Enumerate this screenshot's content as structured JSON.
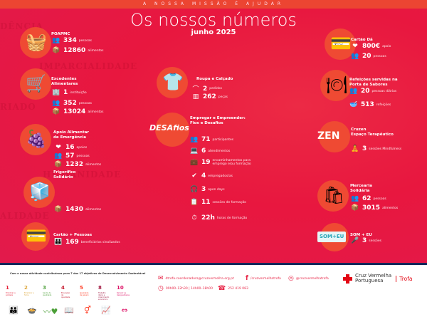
{
  "header": {
    "mission": "A NOSSA MISSÃO É AJUDAR",
    "title": "Os nossos números",
    "subtitle": "junho 2025"
  },
  "watermarks": [
    "IMPARCIALIDADE",
    "HUMANIDADE",
    "ALIDADE",
    "RIADO",
    "DÊNCIA"
  ],
  "accent": "#e8173f",
  "sections": [
    {
      "id": "poapmc",
      "title": "POAPMC",
      "icon": "picnic-basket-icon",
      "stats": [
        {
          "icon": "people-icon",
          "value": "334",
          "unit": "pessoas"
        },
        {
          "icon": "food-box-icon",
          "value": "12860",
          "unit": "alimentos"
        }
      ]
    },
    {
      "id": "excedentes",
      "title": "Excedentes\nAlimentares",
      "icon": "shopping-basket-icon",
      "stats": [
        {
          "icon": "building-icon",
          "value": "1",
          "unit": "instituição"
        },
        {
          "icon": "people-icon",
          "value": "352",
          "unit": "pessoas"
        },
        {
          "icon": "food-box-icon",
          "value": "13024",
          "unit": "alimentos"
        }
      ]
    },
    {
      "id": "apoio",
      "title": "Apoio Alimentar\nde Emergência",
      "icon": "fruit-basket-icon",
      "stats": [
        {
          "icon": "heart-hand-icon",
          "value": "16",
          "unit": "apoios"
        },
        {
          "icon": "people-icon",
          "value": "57",
          "unit": "pessoas"
        },
        {
          "icon": "food-box-icon",
          "value": "1232",
          "unit": "alimentos"
        }
      ]
    },
    {
      "id": "frigorifico",
      "title": "Frigorífico\nSolidário",
      "icon": "fridge-icon",
      "stats": [
        {
          "icon": "food-box-icon",
          "value": "1430",
          "unit": "alimentos"
        }
      ]
    },
    {
      "id": "cartao-pessoas",
      "title": "Cartão + Pessoas",
      "icon": "card-icon",
      "stats": [
        {
          "icon": "group-icon",
          "value": "169",
          "unit": "beneficiários sinalizados"
        }
      ]
    },
    {
      "id": "roupa",
      "title": "Roupa e Calçado",
      "icon": "clothes-icon",
      "stats": [
        {
          "icon": "hanger-icon",
          "value": "2",
          "unit": "pedidos"
        },
        {
          "icon": "clothes-rack-icon",
          "value": "262",
          "unit": "peças"
        }
      ]
    },
    {
      "id": "empregar",
      "title": "Empregar e Empreender:\nFios e Desafios",
      "logo": "DESAfios",
      "icon": "desafios-logo",
      "stats": [
        {
          "icon": "people-icon",
          "value": "71",
          "unit": "participantes"
        },
        {
          "icon": "desk-icon",
          "value": "6",
          "unit": "atendimentos"
        },
        {
          "icon": "briefcase-icon",
          "value": "19",
          "unit": "encaminhamentos para emprego e/ou formação"
        },
        {
          "icon": "check-icon",
          "value": "4",
          "unit": "empregados/as"
        },
        {
          "icon": "headset-icon",
          "value": "3",
          "unit": "open days"
        },
        {
          "icon": "training-icon",
          "value": "11",
          "unit": "sessões de formação"
        },
        {
          "icon": "clock-icon",
          "value": "22h",
          "unit": "horas de formação"
        }
      ]
    },
    {
      "id": "cartao-da",
      "title": "Cartão Dá",
      "icon": "card-hand-icon",
      "stats": [
        {
          "icon": "heart-hand-icon",
          "value": "800€",
          "unit": "apoio"
        },
        {
          "icon": "people-icon",
          "value": "20",
          "unit": "pessoas"
        }
      ]
    },
    {
      "id": "refeicoes",
      "title": "Refeições servidas na\nPorta de Sabores",
      "icon": "plate-icon",
      "stats": [
        {
          "icon": "people-icon",
          "value": "20",
          "unit": "pessoas diárias"
        },
        {
          "icon": "bowl-icon",
          "value": "513",
          "unit": "refeições"
        }
      ]
    },
    {
      "id": "cruzen",
      "title": "Cruzen\nEspaço Terapêutico",
      "logo": "ZEN",
      "icon": "cruzen-logo",
      "stats": [
        {
          "icon": "meditation-icon",
          "value": "3",
          "unit": "sessões Mindfulness"
        }
      ]
    },
    {
      "id": "mercearia",
      "title": "Mercearia\nSolidária",
      "icon": "grocery-bag-icon",
      "stats": [
        {
          "icon": "people-icon",
          "value": "62",
          "unit": "pessoas"
        },
        {
          "icon": "food-box-icon",
          "value": "3015",
          "unit": "alimentos"
        }
      ]
    },
    {
      "id": "som-eu",
      "title": "SOM + EU",
      "logo": "SOM+EU",
      "icon": "som-eu-logo",
      "stats": [
        {
          "icon": "microphone-icon",
          "value": "3",
          "unit": "sessões"
        }
      ]
    }
  ],
  "footer": {
    "ods_text": "Com a nossa atividade contribuímos para 7 dos 17 objetivos de Desenvolvimento Sustentável",
    "sdgs": [
      {
        "n": "1",
        "label": "Erradicar a pobreza",
        "color": "#e5243b"
      },
      {
        "n": "2",
        "label": "Erradicar a fome",
        "color": "#dda63a"
      },
      {
        "n": "3",
        "label": "Saúde de qualidade",
        "color": "#4c9f38"
      },
      {
        "n": "4",
        "label": "Educação de qualidade",
        "color": "#c5192d"
      },
      {
        "n": "5",
        "label": "Igualdade de género",
        "color": "#ff3a21"
      },
      {
        "n": "8",
        "label": "Trabalho digno e crescimento económico",
        "color": "#a21942"
      },
      {
        "n": "10",
        "label": "Reduzir as desigualdades",
        "color": "#dd1367"
      }
    ],
    "email": "dtrofa.coordenadora@cruzvermelha.org.pt",
    "facebook": "/cruzvermelhatrofa",
    "instagram": "@cruzvermelhatrofa",
    "hours": "09h00–12h30 | 14h00–18h00",
    "phone": "252 419 083",
    "org_name": "Cruz Vermelha\nPortuguesa",
    "branch": "Trofa"
  }
}
